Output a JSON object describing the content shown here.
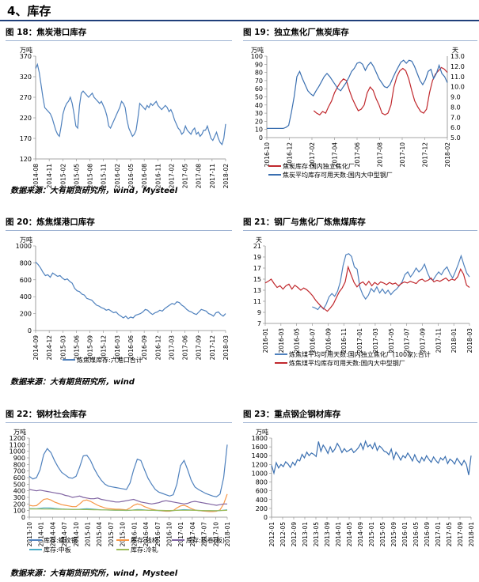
{
  "section_title": "4、库存",
  "sources": {
    "row1": "数据来源：大有期货研究所，wind，Mysteel",
    "row2": "数据来源：大有期货研究所，wind",
    "row3": "数据来源：大有期货研究所，wind，Mysteel"
  },
  "chart_data": [
    {
      "id": "c18",
      "panel_title": "图 18：焦炭港口库存",
      "type": "line",
      "ylabel": "万吨",
      "ylim": [
        120,
        370
      ],
      "yticks": [
        120,
        170,
        220,
        270,
        320,
        370
      ],
      "xlabels": [
        "2014-08",
        "2014-11",
        "2015-02",
        "2015-05",
        "2015-08",
        "2015-11",
        "2016-02",
        "2016-05",
        "2016-08",
        "2016-11",
        "2017-02",
        "2017-05",
        "2017-08",
        "2017-11",
        "2018-02"
      ],
      "series": [
        {
          "color": "#4f81bd",
          "axis": "left",
          "values": [
            340,
            350,
            330,
            300,
            270,
            245,
            240,
            235,
            230,
            220,
            205,
            190,
            180,
            175,
            200,
            230,
            245,
            255,
            260,
            270,
            255,
            230,
            200,
            195,
            250,
            280,
            285,
            280,
            275,
            270,
            275,
            280,
            270,
            265,
            260,
            255,
            260,
            250,
            240,
            225,
            200,
            195,
            205,
            215,
            225,
            235,
            245,
            260,
            255,
            245,
            215,
            195,
            185,
            175,
            180,
            190,
            220,
            255,
            250,
            245,
            240,
            250,
            245,
            255,
            250,
            255,
            260,
            250,
            245,
            240,
            245,
            250,
            245,
            235,
            240,
            230,
            215,
            205,
            195,
            190,
            180,
            185,
            200,
            190,
            185,
            180,
            190,
            195,
            180,
            185,
            175,
            180,
            190,
            190,
            200,
            185,
            170,
            165,
            175,
            185,
            170,
            160,
            155,
            170,
            205
          ]
        }
      ]
    },
    {
      "id": "c19",
      "panel_title": "图 19：独立焦化厂焦炭库存",
      "type": "line",
      "ylabel": "万吨",
      "ylabel_right": "天",
      "ylim": [
        0,
        100
      ],
      "yticks": [
        0,
        10,
        20,
        30,
        40,
        50,
        60,
        70,
        80,
        90,
        100
      ],
      "ylim_right": [
        5,
        13
      ],
      "yticks_right": [
        "5.0",
        "6.0",
        "7.0",
        "8.0",
        "9.0",
        "10.0",
        "11.0",
        "12.0",
        "13.0"
      ],
      "xlabels": [
        "2016-10",
        "2016-12",
        "2017-02",
        "2017-04",
        "2017-06",
        "2017-08",
        "2017-10",
        "2017-12",
        "2018-02"
      ],
      "series": [
        {
          "name": "焦炭库存:国内独立焦化厂",
          "color": "#c0282d",
          "axis": "left",
          "x_start": 0.26,
          "values": [
            33,
            30,
            28,
            32,
            30,
            38,
            45,
            55,
            62,
            68,
            72,
            70,
            58,
            48,
            40,
            33,
            35,
            40,
            55,
            62,
            58,
            48,
            40,
            30,
            28,
            30,
            40,
            62,
            75,
            82,
            85,
            82,
            72,
            58,
            45,
            38,
            32,
            30,
            35,
            55,
            70,
            78,
            82,
            86,
            84,
            80
          ]
        },
        {
          "name": "焦炭平均库存可用天数:国内大中型钢厂",
          "color": "#3a6fb0",
          "axis": "right",
          "x_start": 0.0,
          "values": [
            5.9,
            5.9,
            5.9,
            5.9,
            5.9,
            5.9,
            5.9,
            6.0,
            6.2,
            7.5,
            9.0,
            11.0,
            11.5,
            10.8,
            10.2,
            9.6,
            9.3,
            9.1,
            9.6,
            10.0,
            10.5,
            11.0,
            11.3,
            11.0,
            10.6,
            10.2,
            9.8,
            9.6,
            10.0,
            10.4,
            10.9,
            11.5,
            11.8,
            12.3,
            12.4,
            12.2,
            11.6,
            12.1,
            12.4,
            12.0,
            11.4,
            10.8,
            10.4,
            10.0,
            9.9,
            10.2,
            10.8,
            11.4,
            11.9,
            12.4,
            12.6,
            12.3,
            12.6,
            12.5,
            12.0,
            11.3,
            10.6,
            10.2,
            10.7,
            11.5,
            11.7,
            10.8,
            11.3,
            12.1,
            11.3,
            11.0,
            10.4
          ]
        }
      ]
    },
    {
      "id": "c20",
      "panel_title": "图 20：炼焦煤港口库存",
      "type": "line",
      "ylabel": "万吨",
      "ylim": [
        0,
        1000
      ],
      "yticks": [
        0,
        200,
        400,
        600,
        800,
        1000
      ],
      "xlabels": [
        "2014-09",
        "2014-12",
        "2015-03",
        "2015-06",
        "2015-09",
        "2015-12",
        "2016-03",
        "2016-06",
        "2016-09",
        "2016-12",
        "2017-03",
        "2017-06",
        "2017-09",
        "2017-12",
        "2018-03"
      ],
      "series": [
        {
          "name": "炼焦煤库存:六港口合计",
          "color": "#4f81bd",
          "axis": "left",
          "values": [
            810,
            780,
            740,
            690,
            650,
            660,
            630,
            680,
            660,
            640,
            650,
            620,
            600,
            610,
            580,
            560,
            500,
            470,
            460,
            430,
            420,
            380,
            370,
            360,
            330,
            300,
            290,
            270,
            260,
            240,
            250,
            230,
            210,
            220,
            190,
            170,
            150,
            170,
            140,
            160,
            150,
            180,
            190,
            200,
            220,
            250,
            240,
            210,
            190,
            210,
            220,
            240,
            230,
            260,
            280,
            300,
            320,
            310,
            340,
            330,
            300,
            280,
            250,
            230,
            220,
            200,
            190,
            220,
            250,
            240,
            230,
            200,
            190,
            170,
            210,
            220,
            190,
            170,
            200
          ]
        }
      ]
    },
    {
      "id": "c21",
      "panel_title": "图 21：钢厂与焦化厂炼焦煤库存",
      "type": "line",
      "ylabel": "天",
      "ylim": [
        7,
        21
      ],
      "yticks": [
        7,
        9,
        11,
        13,
        15,
        17,
        19,
        21
      ],
      "xlabels": [
        "2016-01",
        "2016-03",
        "2016-05",
        "2016-07",
        "2016-09",
        "2016-11",
        "2017-01",
        "2017-03",
        "2017-05",
        "2017-07",
        "2017-09",
        "2017-11",
        "2018-01",
        "2018-03"
      ],
      "series": [
        {
          "name": "炼焦煤平均可用天数:国内独立焦化厂(100家):合计",
          "color": "#4f81bd",
          "axis": "left",
          "x_start": 0.23,
          "values": [
            10,
            9.8,
            9.5,
            10.2,
            9.6,
            10.5,
            11.8,
            12.4,
            11.9,
            12.8,
            14.5,
            17.5,
            19.4,
            19.6,
            19.1,
            17.2,
            16.8,
            13.5,
            12.2,
            11.4,
            12.1,
            13.3,
            12.7,
            13.6,
            12.5,
            13.2,
            12.4,
            13.0,
            12.2,
            12.8,
            13.2,
            13.8,
            14.5,
            15.8,
            16.3,
            15.4,
            16.1,
            17.0,
            16.3,
            16.8,
            17.7,
            16.2,
            15.1,
            14.8,
            15.6,
            16.3,
            15.8,
            16.7,
            17.2,
            16.0,
            15.2,
            16.4,
            17.7,
            19.2,
            17.6,
            16.1,
            15.4
          ]
        },
        {
          "name": "炼焦煤平均库存可用天数:国内大中型钢厂",
          "color": "#c0282d",
          "axis": "left",
          "x_start": 0.0,
          "values": [
            14.3,
            14.6,
            15.0,
            14.2,
            13.5,
            13.8,
            13.2,
            13.8,
            14.1,
            13.2,
            13.9,
            13.5,
            13.0,
            13.4,
            13.1,
            12.6,
            12.0,
            11.2,
            10.6,
            10.0,
            9.6,
            9.2,
            9.8,
            10.5,
            11.6,
            12.7,
            13.4,
            14.5,
            17.2,
            15.8,
            14.4,
            13.6,
            14.2,
            14.5,
            13.9,
            14.6,
            13.8,
            14.4,
            14.0,
            14.5,
            14.3,
            14.0,
            14.4,
            14.1,
            14.3,
            13.8,
            14.2,
            14.5,
            14.3,
            14.6,
            14.4,
            14.2,
            14.8,
            15.0,
            14.6,
            14.8,
            15.2,
            14.5,
            14.8,
            14.6,
            14.9,
            15.2,
            14.7,
            15.0,
            14.8,
            15.4,
            16.8,
            15.9,
            13.9,
            13.5
          ]
        }
      ]
    },
    {
      "id": "c22",
      "panel_title": "图 22：钢材社会库存",
      "type": "line",
      "ylabel": "万吨",
      "ylim": [
        0,
        1200
      ],
      "yticks": [
        0,
        100,
        200,
        300,
        400,
        500,
        600,
        700,
        800,
        900,
        1000,
        1100,
        1200
      ],
      "xlabels": [
        "2013-10",
        "2014-01",
        "2014-04",
        "2014-07",
        "2014-10",
        "2015-01",
        "2015-04",
        "2015-07",
        "2015-10",
        "2016-01",
        "2016-04",
        "2016-07",
        "2016-10",
        "2017-01",
        "2017-04",
        "2017-07",
        "2017-10",
        "2018-01"
      ],
      "series": [
        {
          "name": "库存:螺纹钢",
          "color": "#4f81bd",
          "axis": "left",
          "values": [
            620,
            580,
            600,
            720,
            950,
            1040,
            980,
            860,
            760,
            680,
            640,
            600,
            590,
            620,
            760,
            930,
            940,
            860,
            740,
            640,
            560,
            500,
            470,
            460,
            450,
            440,
            430,
            420,
            520,
            720,
            880,
            860,
            720,
            590,
            500,
            420,
            380,
            360,
            340,
            320,
            340,
            500,
            780,
            860,
            720,
            560,
            460,
            420,
            390,
            360,
            340,
            320,
            310,
            350,
            600,
            1100
          ]
        },
        {
          "name": "库存:线材",
          "color": "#f79646",
          "axis": "left",
          "values": [
            180,
            170,
            175,
            220,
            270,
            280,
            260,
            230,
            210,
            190,
            180,
            170,
            160,
            160,
            200,
            250,
            260,
            240,
            210,
            180,
            160,
            140,
            130,
            125,
            120,
            120,
            115,
            110,
            140,
            180,
            200,
            190,
            160,
            140,
            120,
            110,
            100,
            95,
            90,
            90,
            100,
            140,
            170,
            180,
            160,
            130,
            110,
            100,
            95,
            90,
            85,
            85,
            90,
            110,
            200,
            350
          ]
        },
        {
          "name": "库存:热卷(板)",
          "color": "#8064a2",
          "axis": "left",
          "values": [
            420,
            410,
            400,
            410,
            400,
            390,
            380,
            370,
            360,
            350,
            330,
            320,
            300,
            310,
            320,
            300,
            290,
            280,
            280,
            290,
            270,
            260,
            250,
            240,
            230,
            230,
            240,
            250,
            260,
            270,
            250,
            230,
            220,
            210,
            200,
            210,
            220,
            240,
            250,
            240,
            230,
            220,
            210,
            200,
            210,
            230,
            240,
            230,
            220,
            210,
            200,
            190,
            180,
            190,
            200,
            200
          ]
        },
        {
          "name": "库存:中板",
          "color": "#4bacc6",
          "axis": "left",
          "values": [
            130,
            130,
            128,
            135,
            140,
            140,
            138,
            132,
            128,
            125,
            122,
            120,
            118,
            118,
            120,
            125,
            128,
            125,
            120,
            115,
            112,
            110,
            108,
            106,
            104,
            104,
            103,
            102,
            104,
            110,
            115,
            114,
            110,
            106,
            104,
            102,
            100,
            100,
            98,
            98,
            100,
            104,
            110,
            114,
            112,
            108,
            104,
            102,
            100,
            98,
            98,
            97,
            97,
            100,
            106,
            112
          ]
        },
        {
          "name": "库存:冷轧",
          "color": "#9bbb59",
          "axis": "left",
          "values": [
            125,
            125,
            124,
            124,
            123,
            123,
            122,
            121,
            120,
            120,
            119,
            118,
            117,
            116,
            116,
            115,
            115,
            114,
            113,
            112,
            111,
            110,
            109,
            108,
            107,
            106,
            105,
            105,
            106,
            107,
            108,
            107,
            106,
            105,
            104,
            103,
            103,
            102,
            101,
            101,
            102,
            103,
            104,
            105,
            105,
            104,
            103,
            102,
            101,
            100,
            100,
            99,
            99,
            100,
            102,
            104
          ]
        }
      ]
    },
    {
      "id": "c23",
      "panel_title": "图 23：重点钢企钢材库存",
      "type": "line",
      "ylabel": "万吨",
      "ylim": [
        0,
        1800
      ],
      "yticks": [
        0,
        200,
        400,
        600,
        800,
        1000,
        1200,
        1400,
        1600,
        1800
      ],
      "xlabels": [
        "2012-01",
        "2012-05",
        "2012-09",
        "2013-01",
        "2013-05",
        "2013-09",
        "2014-01",
        "2014-05",
        "2014-09",
        "2015-01",
        "2015-05",
        "2015-09",
        "2016-01",
        "2016-05",
        "2016-09",
        "2017-01",
        "2017-05",
        "2017-09",
        "2018-01"
      ],
      "series": [
        {
          "name": "",
          "color": "#3a6fb0",
          "axis": "left",
          "values": [
            1180,
            1000,
            1240,
            1120,
            1200,
            1150,
            1260,
            1210,
            1130,
            1250,
            1180,
            1310,
            1280,
            1430,
            1350,
            1480,
            1400,
            1460,
            1430,
            1380,
            1720,
            1500,
            1640,
            1560,
            1450,
            1600,
            1480,
            1550,
            1680,
            1590,
            1470,
            1560,
            1490,
            1520,
            1560,
            1470,
            1520,
            1580,
            1680,
            1540,
            1730,
            1600,
            1650,
            1560,
            1690,
            1520,
            1620,
            1570,
            1500,
            1480,
            1420,
            1550,
            1320,
            1480,
            1400,
            1300,
            1400,
            1350,
            1460,
            1380,
            1280,
            1420,
            1300,
            1240,
            1360,
            1280,
            1400,
            1320,
            1250,
            1370,
            1290,
            1230,
            1350,
            1300,
            1380,
            1220,
            1320,
            1280,
            1210,
            1340,
            1260,
            1180,
            1290,
            1200,
            960,
            1400
          ]
        }
      ]
    }
  ]
}
